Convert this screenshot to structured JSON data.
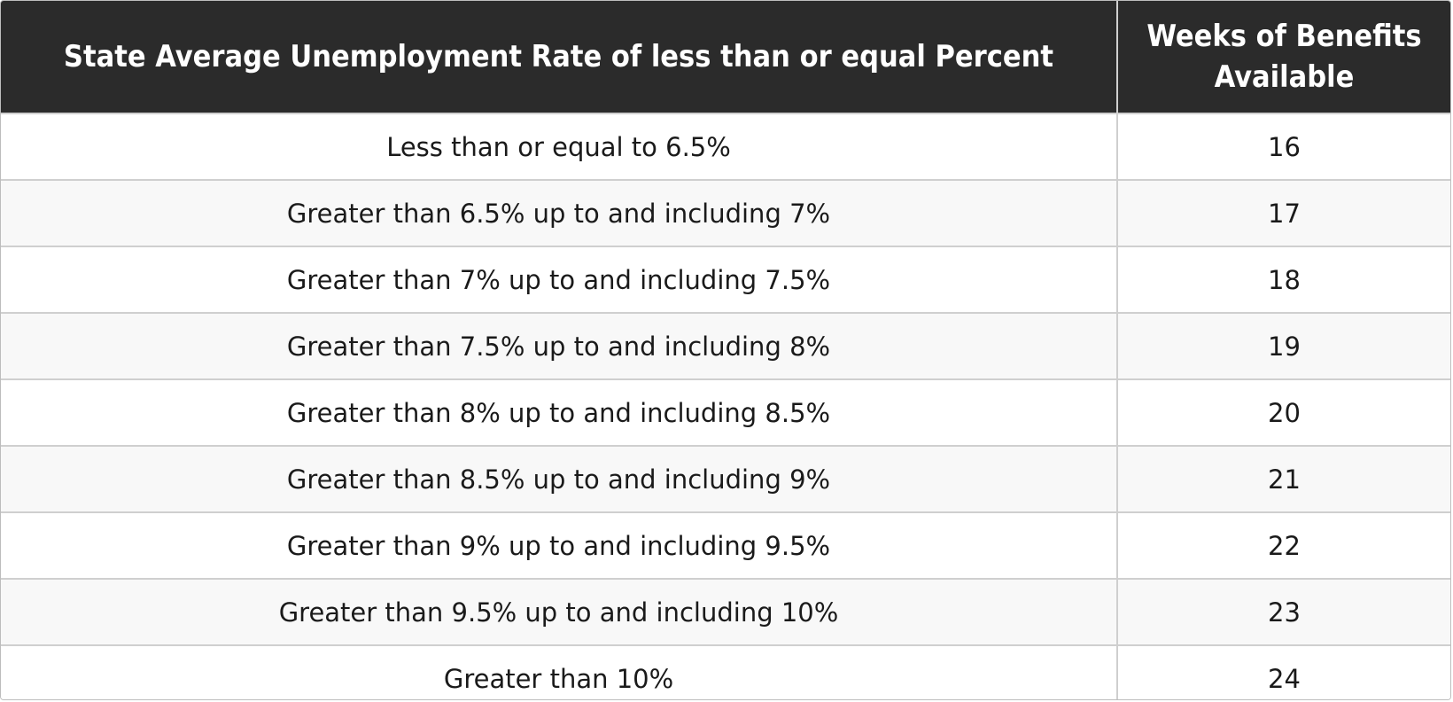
{
  "table": {
    "headers": {
      "rate": "State Average Unemployment  Rate of less than or equal Percent",
      "weeks_line1": "Weeks of Benefits",
      "weeks_line2": "Available"
    },
    "rows": [
      {
        "range": "Less than or equal to 6.5%",
        "weeks": "16"
      },
      {
        "range": "Greater than 6.5% up to and including 7%",
        "weeks": "17"
      },
      {
        "range": "Greater than 7% up to and including 7.5%",
        "weeks": "18"
      },
      {
        "range": "Greater than 7.5% up to and including 8%",
        "weeks": "19"
      },
      {
        "range": "Greater than 8% up to and including 8.5%",
        "weeks": "20"
      },
      {
        "range": "Greater than 8.5% up to and including 9%",
        "weeks": "21"
      },
      {
        "range": "Greater than 9% up to and including 9.5%",
        "weeks": "22"
      },
      {
        "range": "Greater than 9.5% up to and including 10%",
        "weeks": "23"
      },
      {
        "range": "Greater than 10%",
        "weeks": "24"
      }
    ]
  }
}
